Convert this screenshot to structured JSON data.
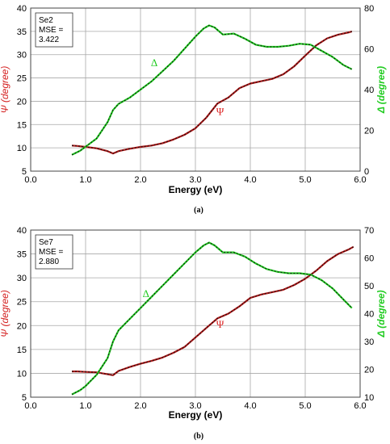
{
  "chart_data": [
    {
      "type": "line",
      "caption": "(a)",
      "legend_lines": [
        "Se2",
        "MSE =",
        "3.422"
      ],
      "xlabel": "Energy (eV)",
      "ylabel_left": "Ψ (degree)",
      "ylabel_right": "Δ (degree)",
      "xlim": [
        0,
        6
      ],
      "ylim_left": [
        5,
        40
      ],
      "ylim_right": [
        0,
        80
      ],
      "x_ticks": [
        "0.0",
        "1.0",
        "2.0",
        "3.0",
        "4.0",
        "5.0",
        "6.0"
      ],
      "y_left_ticks": [
        "5",
        "10",
        "15",
        "20",
        "25",
        "30",
        "35",
        "40"
      ],
      "y_right_ticks": [
        "0",
        "20",
        "40",
        "60",
        "80"
      ],
      "annotations": [
        {
          "text": "Δ",
          "x": 2.25,
          "y_left": 27.5,
          "color": "#22cc22"
        },
        {
          "text": "Ψ",
          "x": 3.45,
          "y_left": 17.0,
          "color": "#dd2222"
        }
      ],
      "series": [
        {
          "name": "Ψ",
          "axis": "left",
          "color": "#b01818",
          "x": [
            0.75,
            0.85,
            1.0,
            1.2,
            1.4,
            1.5,
            1.6,
            1.8,
            2.0,
            2.2,
            2.4,
            2.6,
            2.8,
            3.0,
            3.2,
            3.4,
            3.6,
            3.8,
            4.0,
            4.2,
            4.4,
            4.6,
            4.8,
            5.0,
            5.2,
            5.4,
            5.6,
            5.8,
            5.85
          ],
          "y": [
            10.5,
            10.4,
            10.2,
            9.9,
            9.3,
            8.8,
            9.3,
            9.8,
            10.2,
            10.5,
            11.0,
            11.8,
            12.8,
            14.2,
            16.5,
            19.5,
            20.8,
            22.8,
            23.8,
            24.3,
            24.8,
            25.8,
            27.5,
            29.8,
            32.0,
            33.5,
            34.3,
            34.8,
            35.0
          ]
        },
        {
          "name": "Δ",
          "axis": "right",
          "color": "#22cc22",
          "x": [
            0.75,
            0.9,
            1.0,
            1.2,
            1.4,
            1.5,
            1.6,
            1.8,
            2.0,
            2.2,
            2.4,
            2.6,
            2.8,
            3.0,
            3.15,
            3.25,
            3.35,
            3.5,
            3.7,
            3.9,
            4.1,
            4.3,
            4.5,
            4.7,
            4.9,
            5.1,
            5.3,
            5.5,
            5.7,
            5.85
          ],
          "y": [
            8,
            10,
            12,
            16,
            24,
            30,
            33,
            36,
            40,
            44,
            49,
            54,
            60,
            66,
            70,
            71.5,
            70.5,
            67,
            67.5,
            65,
            62,
            61,
            61,
            61.5,
            62.5,
            62,
            59,
            56,
            52,
            50
          ]
        }
      ]
    },
    {
      "type": "line",
      "caption": "(b)",
      "legend_lines": [
        "Se7",
        "MSE =",
        "2.880"
      ],
      "xlabel": "Energy (eV)",
      "ylabel_left": "Ψ (degree)",
      "ylabel_right": "Δ (degree)",
      "xlim": [
        0,
        6
      ],
      "ylim_left": [
        5,
        40
      ],
      "ylim_right": [
        10,
        70
      ],
      "x_ticks": [
        "0.0",
        "1.0",
        "2.0",
        "3.0",
        "4.0",
        "5.0",
        "6.0"
      ],
      "y_left_ticks": [
        "5",
        "10",
        "15",
        "20",
        "25",
        "30",
        "35",
        "40"
      ],
      "y_right_ticks": [
        "10",
        "20",
        "30",
        "40",
        "50",
        "60",
        "70"
      ],
      "annotations": [
        {
          "text": "Δ",
          "x": 2.1,
          "y_left": 26.0,
          "color": "#22cc22"
        },
        {
          "text": "Ψ",
          "x": 3.45,
          "y_left": 19.5,
          "color": "#dd2222"
        }
      ],
      "series": [
        {
          "name": "Ψ",
          "axis": "left",
          "color": "#b01818",
          "x": [
            0.75,
            0.85,
            1.0,
            1.2,
            1.4,
            1.5,
            1.6,
            1.8,
            2.0,
            2.2,
            2.4,
            2.6,
            2.8,
            3.0,
            3.2,
            3.4,
            3.6,
            3.8,
            4.0,
            4.2,
            4.4,
            4.6,
            4.8,
            5.0,
            5.2,
            5.4,
            5.6,
            5.8,
            5.88
          ],
          "y": [
            10.4,
            10.4,
            10.3,
            10.2,
            9.8,
            9.6,
            10.5,
            11.3,
            12.0,
            12.6,
            13.3,
            14.3,
            15.5,
            17.5,
            19.5,
            21.5,
            22.5,
            24.0,
            25.8,
            26.5,
            27.0,
            27.5,
            28.5,
            29.8,
            31.5,
            33.5,
            35.0,
            36.0,
            36.5
          ]
        },
        {
          "name": "Δ",
          "axis": "right",
          "color": "#22cc22",
          "x": [
            0.75,
            0.9,
            1.0,
            1.2,
            1.4,
            1.5,
            1.6,
            1.8,
            2.0,
            2.2,
            2.4,
            2.6,
            2.8,
            3.0,
            3.15,
            3.25,
            3.35,
            3.5,
            3.7,
            3.9,
            4.1,
            4.3,
            4.5,
            4.7,
            4.9,
            5.1,
            5.3,
            5.5,
            5.7,
            5.85
          ],
          "y": [
            11,
            12.5,
            14,
            18,
            24,
            30,
            34,
            38,
            42,
            46,
            50,
            54,
            58,
            62,
            64.5,
            65.5,
            64.5,
            62,
            62,
            60.5,
            58,
            56,
            55,
            54.5,
            54.5,
            54,
            52,
            49,
            45,
            42
          ]
        }
      ]
    }
  ]
}
